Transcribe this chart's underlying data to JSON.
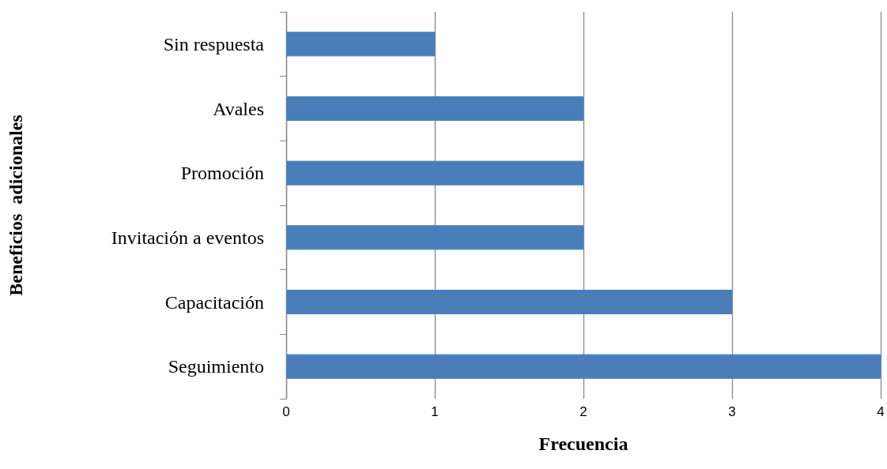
{
  "chart_data": {
    "type": "bar",
    "orientation": "horizontal",
    "xlabel": "Frecuencia",
    "ylabel": "Beneficios  adicionales",
    "categories": [
      "Sin respuesta",
      "Avales",
      "Promoción",
      "Invitación a eventos",
      "Capacitación",
      "Seguimiento"
    ],
    "values": [
      1,
      2,
      2,
      2,
      3,
      4
    ],
    "color": "#4a7ebb",
    "xlim": [
      0,
      4
    ],
    "xticks": [
      0,
      1,
      2,
      3,
      4
    ],
    "grid": "x"
  }
}
